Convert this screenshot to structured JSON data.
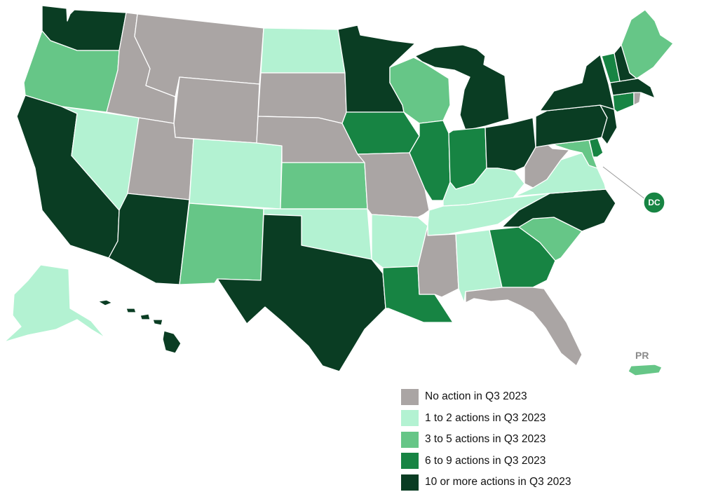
{
  "palette": {
    "c0": "#aaa5a4",
    "c1": "#b3f2d2",
    "c2": "#66c687",
    "c3": "#178443",
    "c4": "#0a3d23"
  },
  "legend": [
    {
      "key": "c0",
      "label": "No action in Q3 2023"
    },
    {
      "key": "c1",
      "label": "1 to 2 actions in Q3 2023"
    },
    {
      "key": "c2",
      "label": "3 to 5 actions in Q3 2023"
    },
    {
      "key": "c3",
      "label": "6 to 9 actions in Q3 2023"
    },
    {
      "key": "c4",
      "label": "10 or more actions in Q3 2023"
    }
  ],
  "labels": {
    "pr": "PR",
    "dc": "DC"
  },
  "states": {
    "WA": "c4",
    "OR": "c2",
    "CA": "c4",
    "NV": "c1",
    "ID": "c0",
    "MT": "c0",
    "WY": "c0",
    "UT": "c0",
    "AZ": "c4",
    "CO": "c1",
    "NM": "c2",
    "ND": "c1",
    "SD": "c0",
    "NE": "c0",
    "KS": "c2",
    "OK": "c1",
    "TX": "c4",
    "MN": "c4",
    "IA": "c3",
    "MO": "c0",
    "AR": "c1",
    "LA": "c3",
    "WI": "c2",
    "IL": "c3",
    "MI": "c4",
    "IN": "c3",
    "OH": "c4",
    "KY": "c1",
    "TN": "c1",
    "MS": "c0",
    "AL": "c1",
    "GA": "c3",
    "FL": "c0",
    "SC": "c2",
    "NC": "c4",
    "VA": "c1",
    "WV": "c0",
    "MD": "c2",
    "DE": "c3",
    "NJ": "c4",
    "PA": "c4",
    "NY": "c4",
    "CT": "c3",
    "RI": "c0",
    "MA": "c4",
    "VT": "c3",
    "NH": "c4",
    "ME": "c2",
    "AK": "c1",
    "HI": "c4",
    "PR": "c2",
    "DC": "c3"
  }
}
